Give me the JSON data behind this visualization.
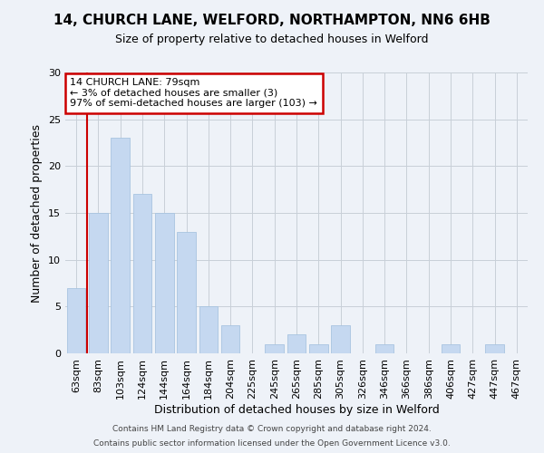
{
  "title_line1": "14, CHURCH LANE, WELFORD, NORTHAMPTON, NN6 6HB",
  "title_line2": "Size of property relative to detached houses in Welford",
  "xlabel": "Distribution of detached houses by size in Welford",
  "ylabel": "Number of detached properties",
  "categories": [
    "63sqm",
    "83sqm",
    "103sqm",
    "124sqm",
    "144sqm",
    "164sqm",
    "184sqm",
    "204sqm",
    "225sqm",
    "245sqm",
    "265sqm",
    "285sqm",
    "305sqm",
    "326sqm",
    "346sqm",
    "366sqm",
    "386sqm",
    "406sqm",
    "427sqm",
    "447sqm",
    "467sqm"
  ],
  "values": [
    7,
    15,
    23,
    17,
    15,
    13,
    5,
    3,
    0,
    1,
    2,
    1,
    3,
    0,
    1,
    0,
    0,
    1,
    0,
    1,
    0
  ],
  "bar_color": "#c5d8f0",
  "bar_edge_color": "#a8c4e0",
  "bar_width": 0.85,
  "ylim": [
    0,
    30
  ],
  "yticks": [
    0,
    5,
    10,
    15,
    20,
    25,
    30
  ],
  "grid_color": "#c8cfd8",
  "annotation_box_text": "14 CHURCH LANE: 79sqm\n← 3% of detached houses are smaller (3)\n97% of semi-detached houses are larger (103) →",
  "annotation_box_color": "#ffffff",
  "annotation_box_edge_color": "#cc0000",
  "marker_line_color": "#cc0000",
  "footnote_line1": "Contains HM Land Registry data © Crown copyright and database right 2024.",
  "footnote_line2": "Contains public sector information licensed under the Open Government Licence v3.0.",
  "background_color": "#eef2f8",
  "title1_fontsize": 11,
  "title2_fontsize": 9,
  "xlabel_fontsize": 9,
  "ylabel_fontsize": 9,
  "tick_fontsize": 8,
  "annot_fontsize": 8,
  "footnote_fontsize": 6.5
}
